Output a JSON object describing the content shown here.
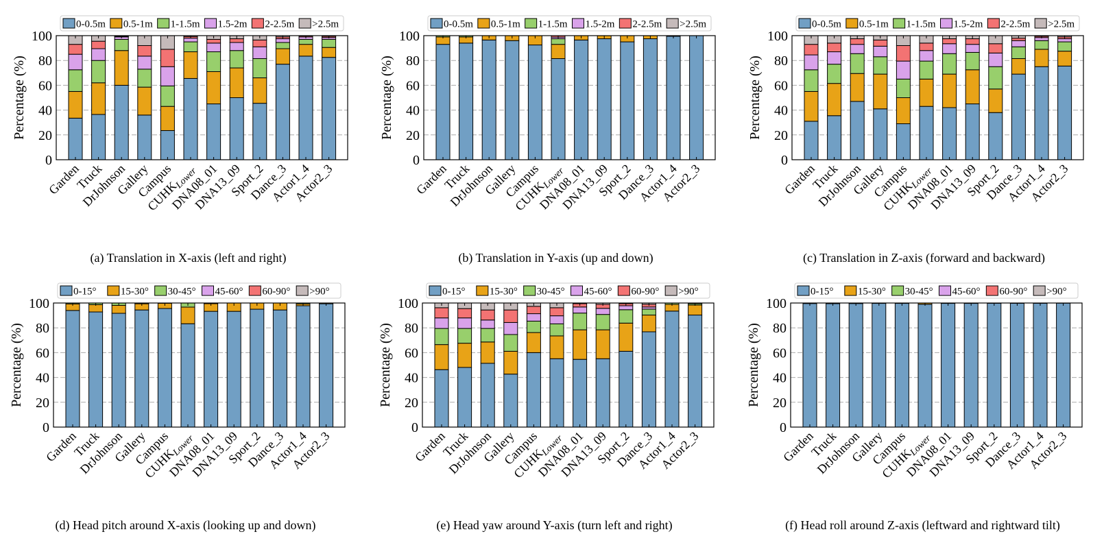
{
  "colors": [
    "#719fc4",
    "#e8a317",
    "#98cf6c",
    "#d9a2ea",
    "#f37373",
    "#c5baba"
  ],
  "chart_data": [
    {
      "type": "bar",
      "stacked": true,
      "caption": "(a)  Translation in X-axis (left and right)",
      "ylabel": "Percentage (%)",
      "ylim": [
        0,
        100
      ],
      "yticks": [
        0,
        20,
        40,
        60,
        80,
        100
      ],
      "grid": "horizontal dashed",
      "legend": "top",
      "categories": [
        "Garden",
        "Truck",
        "DrJohnson",
        "Gallery",
        "Campus",
        "CUHK_Lower",
        "DNA08_01",
        "DNA13_09",
        "Sport_2",
        "Dance_3",
        "Actor1_4",
        "Actor2_3"
      ],
      "series": [
        {
          "name": "0-0.5m",
          "values": [
            33.5,
            36.5,
            60,
            36,
            23.5,
            65.5,
            45,
            50,
            45.5,
            77,
            83.5,
            82.5
          ]
        },
        {
          "name": "0.5-1m",
          "values": [
            21.5,
            25.5,
            28,
            22.5,
            19.5,
            21.5,
            26,
            24,
            20.5,
            12.5,
            9.5,
            8
          ]
        },
        {
          "name": "1-1.5m",
          "values": [
            17.5,
            18,
            9,
            14.5,
            16.5,
            8,
            16,
            14,
            15.5,
            5,
            4,
            6.5
          ]
        },
        {
          "name": "1.5-2m",
          "values": [
            12.5,
            9.5,
            2,
            10.5,
            15.5,
            3,
            7,
            6.5,
            9.5,
            3,
            2,
            1.5
          ]
        },
        {
          "name": "2-2.5m",
          "values": [
            8,
            6,
            0.5,
            8.5,
            14,
            1.3,
            3,
            3,
            5.5,
            1.5,
            0.8,
            1
          ]
        },
        {
          "name": ">2.5m",
          "values": [
            7,
            4.5,
            0.5,
            8,
            11,
            0.7,
            3,
            2.5,
            3.5,
            1,
            0.2,
            0.5
          ]
        }
      ]
    },
    {
      "type": "bar",
      "stacked": true,
      "caption": "(b)  Translation in Y-axis (up and down)",
      "ylabel": "Percentage (%)",
      "ylim": [
        0,
        100
      ],
      "yticks": [
        0,
        20,
        40,
        60,
        80,
        100
      ],
      "grid": "horizontal dashed",
      "legend": "top",
      "categories": [
        "Garden",
        "Truck",
        "DrJohnson",
        "Gallery",
        "Campus",
        "CUHK_Lower",
        "DNA08_01",
        "DNA13_09",
        "Sport_2",
        "Dance_3",
        "Actor1_4",
        "Actor2_3"
      ],
      "series": [
        {
          "name": "0-0.5m",
          "values": [
            93,
            94,
            96.5,
            96,
            92.5,
            81.5,
            96.5,
            97.5,
            95,
            97.5,
            99.5,
            100
          ]
        },
        {
          "name": "0.5-1m",
          "values": [
            6,
            5,
            3.5,
            4,
            7.5,
            11.5,
            3.5,
            2.5,
            5,
            2.5,
            0.5,
            0
          ]
        },
        {
          "name": "1-1.5m",
          "values": [
            1,
            1,
            0,
            0,
            0,
            4.5,
            0,
            0,
            0,
            0,
            0,
            0
          ]
        },
        {
          "name": "1.5-2m",
          "values": [
            0,
            0,
            0,
            0,
            0,
            1.3,
            0,
            0,
            0,
            0,
            0,
            0
          ]
        },
        {
          "name": "2-2.5m",
          "values": [
            0,
            0,
            0,
            0,
            0,
            1.2,
            0,
            0,
            0,
            0,
            0,
            0
          ]
        },
        {
          "name": ">2.5m",
          "values": [
            0,
            0,
            0,
            0,
            0,
            0,
            0,
            0,
            0,
            0,
            0,
            0
          ]
        }
      ]
    },
    {
      "type": "bar",
      "stacked": true,
      "caption": "(c)  Translation in Z-axis (forward and backward)",
      "ylabel": "Percentage (%)",
      "ylim": [
        0,
        100
      ],
      "yticks": [
        0,
        20,
        40,
        60,
        80,
        100
      ],
      "grid": "horizontal dashed",
      "legend": "top",
      "categories": [
        "Garden",
        "Truck",
        "DrJohnson",
        "Gallery",
        "Campus",
        "CUHK_Lower",
        "DNA08_01",
        "DNA13_09",
        "Sport_2",
        "Dance_3",
        "Actor1_4",
        "Actor2_3"
      ],
      "series": [
        {
          "name": "0-0.5m",
          "values": [
            31,
            35.5,
            47,
            41,
            29,
            43,
            42,
            45,
            38,
            69,
            75,
            75.5
          ]
        },
        {
          "name": "0.5-1m",
          "values": [
            24,
            26,
            22.5,
            28,
            21,
            22,
            27,
            27.5,
            19,
            12.5,
            14,
            12
          ]
        },
        {
          "name": "1-1.5m",
          "values": [
            17.5,
            15.5,
            16,
            14,
            15,
            14.5,
            16.5,
            14,
            18,
            9.5,
            7,
            7.5
          ]
        },
        {
          "name": "1.5-2m",
          "values": [
            12,
            10,
            7.5,
            8.5,
            14.5,
            8.5,
            8,
            6.5,
            11,
            5,
            2.5,
            2.5
          ]
        },
        {
          "name": "2-2.5m",
          "values": [
            8.5,
            7,
            4.5,
            5,
            12.5,
            6,
            4,
            4.5,
            7.5,
            2,
            1,
            1.5
          ]
        },
        {
          "name": ">2.5m",
          "values": [
            7,
            6,
            2.5,
            3.5,
            8,
            6,
            2.5,
            2.5,
            6.5,
            2,
            0.5,
            1
          ]
        }
      ]
    },
    {
      "type": "bar",
      "stacked": true,
      "caption": "(d)  Head pitch around X-axis (looking up and down)",
      "ylabel": "Percentage (%)",
      "ylim": [
        0,
        100
      ],
      "yticks": [
        0,
        20,
        40,
        60,
        80,
        100
      ],
      "grid": "horizontal dashed",
      "legend": "top",
      "categories": [
        "Garden",
        "Truck",
        "DrJohnson",
        "Gallery",
        "Campus",
        "CUHK_Lower",
        "DNA08_01",
        "DNA13_09",
        "Sport_2",
        "Dance_3",
        "Actor1_4",
        "Actor2_3"
      ],
      "series": [
        {
          "name": "0-15°",
          "values": [
            94,
            92.8,
            91.7,
            94.4,
            95.6,
            83.3,
            93.3,
            93.3,
            95,
            94.4,
            97.8,
            99.4
          ]
        },
        {
          "name": "15-30°",
          "values": [
            5.3,
            5.9,
            6.4,
            5,
            4.2,
            13.4,
            6.2,
            6.7,
            5,
            5.6,
            1.5,
            0.6
          ]
        },
        {
          "name": "30-45°",
          "values": [
            0.7,
            1.3,
            1.9,
            0.6,
            0.2,
            3.3,
            0.5,
            0,
            0,
            0,
            0.7,
            0
          ]
        },
        {
          "name": "45-60°",
          "values": [
            0,
            0,
            0,
            0,
            0,
            0,
            0,
            0,
            0,
            0,
            0,
            0
          ]
        },
        {
          "name": "60-90°",
          "values": [
            0,
            0,
            0,
            0,
            0,
            0,
            0,
            0,
            0,
            0,
            0,
            0
          ]
        },
        {
          "name": ">90°",
          "values": [
            0,
            0,
            0,
            0,
            0,
            0,
            0,
            0,
            0,
            0,
            0,
            0
          ]
        }
      ]
    },
    {
      "type": "bar",
      "stacked": true,
      "caption": "(e)  Head yaw around Y-axis (turn left and right)",
      "ylabel": "Percentage (%)",
      "ylim": [
        0,
        100
      ],
      "yticks": [
        0,
        20,
        40,
        60,
        80,
        100
      ],
      "grid": "horizontal dashed",
      "legend": "top",
      "categories": [
        "Garden",
        "Truck",
        "DrJohnson",
        "Gallery",
        "Campus",
        "CUHK_Lower",
        "DNA08_01",
        "DNA13_09",
        "Sport_2",
        "Dance_3",
        "Actor1_4",
        "Actor2_3"
      ],
      "series": [
        {
          "name": "0-15°",
          "values": [
            46.3,
            48.1,
            51.4,
            42.7,
            60,
            55.1,
            54.6,
            55.1,
            61.1,
            76.8,
            93.5,
            90.3
          ]
        },
        {
          "name": "15-30°",
          "values": [
            20.2,
            19.5,
            17.2,
            18.4,
            16.2,
            18.4,
            23.8,
            23.3,
            22.7,
            13.5,
            5.4,
            8.1
          ]
        },
        {
          "name": "30-45°",
          "values": [
            13,
            11.9,
            10.9,
            13.5,
            9.2,
            9.7,
            13.5,
            12.4,
            10.8,
            4.8,
            1.1,
            1.1
          ]
        },
        {
          "name": "45-60°",
          "values": [
            8.5,
            8.5,
            6.8,
            9.7,
            6,
            6.5,
            4.9,
            4.9,
            3.2,
            1.7,
            0,
            0.5
          ]
        },
        {
          "name": "60-90°",
          "values": [
            8.2,
            7.5,
            8.1,
            10.1,
            5.9,
            6.5,
            2.7,
            3.2,
            1.7,
            2.1,
            0,
            0
          ]
        },
        {
          "name": ">90°",
          "values": [
            3.8,
            4.5,
            5.6,
            5.6,
            2.7,
            3.8,
            0.5,
            1.1,
            0.5,
            1.1,
            0,
            0
          ]
        }
      ]
    },
    {
      "type": "bar",
      "stacked": true,
      "caption": "(f)  Head roll around Z-axis (leftward and rightward tilt)",
      "ylabel": "Percentage (%)",
      "ylim": [
        0,
        100
      ],
      "yticks": [
        0,
        20,
        40,
        60,
        80,
        100
      ],
      "grid": "horizontal dashed",
      "legend": "top",
      "categories": [
        "Garden",
        "Truck",
        "DrJohnson",
        "Gallery",
        "Campus",
        "CUHK_Lower",
        "DNA08_01",
        "DNA13_09",
        "Sport_2",
        "Dance_3",
        "Actor1_4",
        "Actor2_3"
      ],
      "series": [
        {
          "name": "0-15°",
          "values": [
            99.6,
            99.5,
            99.6,
            99.7,
            99.7,
            99,
            99.7,
            99.7,
            99.8,
            99.8,
            99.8,
            99.9
          ]
        },
        {
          "name": "15-30°",
          "values": [
            0.4,
            0.5,
            0.4,
            0.3,
            0.3,
            1,
            0.3,
            0.3,
            0.2,
            0.2,
            0.2,
            0.1
          ]
        },
        {
          "name": "30-45°",
          "values": [
            0,
            0,
            0,
            0,
            0,
            0,
            0,
            0,
            0,
            0,
            0,
            0
          ]
        },
        {
          "name": "45-60°",
          "values": [
            0,
            0,
            0,
            0,
            0,
            0,
            0,
            0,
            0,
            0,
            0,
            0
          ]
        },
        {
          "name": "60-90°",
          "values": [
            0,
            0,
            0,
            0,
            0,
            0,
            0,
            0,
            0,
            0,
            0,
            0
          ]
        },
        {
          "name": ">90°",
          "values": [
            0,
            0,
            0,
            0,
            0,
            0,
            0,
            0,
            0,
            0,
            0,
            0
          ]
        }
      ]
    }
  ]
}
